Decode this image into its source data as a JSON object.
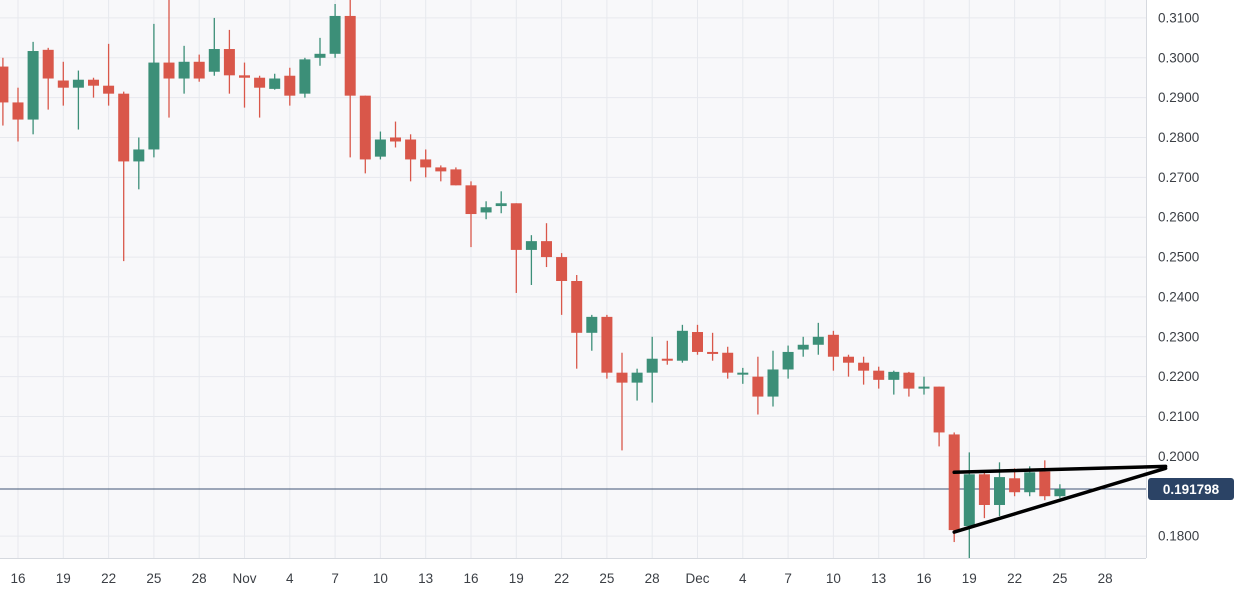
{
  "chart_data": {
    "type": "candlestick",
    "x_tick_labels": [
      "16",
      "19",
      "22",
      "25",
      "28",
      "Nov",
      "4",
      "7",
      "10",
      "13",
      "16",
      "19",
      "22",
      "25",
      "28",
      "Dec",
      "4",
      "7",
      "10",
      "13",
      "16",
      "19",
      "22",
      "25",
      "28"
    ],
    "y_tick_labels": [
      "0.3100",
      "0.3000",
      "0.2900",
      "0.2800",
      "0.2700",
      "0.2600",
      "0.2500",
      "0.2400",
      "0.2300",
      "0.2200",
      "0.2100",
      "0.2000",
      "0.1800"
    ],
    "ylim": [
      0.1745,
      0.3145
    ],
    "grid": true,
    "current_price": {
      "value": 0.191798,
      "label": "0.191798"
    },
    "colors": {
      "up": "#3c8f78",
      "down": "#d9574a",
      "price_line": "#3f5575",
      "price_tag": "#2b4365",
      "grid": "#e7e9ee",
      "trendline": "#000000",
      "background": "#f8f8fa",
      "axis_text": "#3b3f45"
    },
    "candles": [
      {
        "date": "Oct 15",
        "open": 0.2978,
        "high": 0.3,
        "low": 0.283,
        "close": 0.2888
      },
      {
        "date": "Oct 16",
        "open": 0.2888,
        "high": 0.2925,
        "low": 0.279,
        "close": 0.2845
      },
      {
        "date": "Oct 17",
        "open": 0.2845,
        "high": 0.304,
        "low": 0.2808,
        "close": 0.3017
      },
      {
        "date": "Oct 18",
        "open": 0.302,
        "high": 0.3025,
        "low": 0.287,
        "close": 0.2948
      },
      {
        "date": "Oct 19",
        "open": 0.2943,
        "high": 0.299,
        "low": 0.288,
        "close": 0.2925
      },
      {
        "date": "Oct 20",
        "open": 0.2925,
        "high": 0.2968,
        "low": 0.282,
        "close": 0.2945
      },
      {
        "date": "Oct 21",
        "open": 0.2945,
        "high": 0.295,
        "low": 0.29,
        "close": 0.293
      },
      {
        "date": "Oct 22",
        "open": 0.293,
        "high": 0.3035,
        "low": 0.288,
        "close": 0.291
      },
      {
        "date": "Oct 23",
        "open": 0.291,
        "high": 0.2915,
        "low": 0.249,
        "close": 0.274
      },
      {
        "date": "Oct 24",
        "open": 0.274,
        "high": 0.28,
        "low": 0.267,
        "close": 0.277
      },
      {
        "date": "Oct 25",
        "open": 0.277,
        "high": 0.3085,
        "low": 0.275,
        "close": 0.2988
      },
      {
        "date": "Oct 26",
        "open": 0.2988,
        "high": 0.3145,
        "low": 0.285,
        "close": 0.2948
      },
      {
        "date": "Oct 27",
        "open": 0.2948,
        "high": 0.303,
        "low": 0.291,
        "close": 0.299
      },
      {
        "date": "Oct 28",
        "open": 0.299,
        "high": 0.3008,
        "low": 0.294,
        "close": 0.2948
      },
      {
        "date": "Oct 29",
        "open": 0.2965,
        "high": 0.31,
        "low": 0.2955,
        "close": 0.3022
      },
      {
        "date": "Oct 30",
        "open": 0.3022,
        "high": 0.307,
        "low": 0.291,
        "close": 0.2956
      },
      {
        "date": "Oct 31",
        "open": 0.2956,
        "high": 0.2988,
        "low": 0.2875,
        "close": 0.295
      },
      {
        "date": "Nov 1",
        "open": 0.295,
        "high": 0.2955,
        "low": 0.285,
        "close": 0.2925
      },
      {
        "date": "Nov 2",
        "open": 0.2922,
        "high": 0.296,
        "low": 0.292,
        "close": 0.2948
      },
      {
        "date": "Nov 3",
        "open": 0.2955,
        "high": 0.2975,
        "low": 0.288,
        "close": 0.2905
      },
      {
        "date": "Nov 4",
        "open": 0.291,
        "high": 0.3,
        "low": 0.29,
        "close": 0.2996
      },
      {
        "date": "Nov 5",
        "open": 0.3,
        "high": 0.305,
        "low": 0.298,
        "close": 0.301
      },
      {
        "date": "Nov 6",
        "open": 0.301,
        "high": 0.3135,
        "low": 0.3,
        "close": 0.3105
      },
      {
        "date": "Nov 7",
        "open": 0.3105,
        "high": 0.3145,
        "low": 0.275,
        "close": 0.2905
      },
      {
        "date": "Nov 8",
        "open": 0.2905,
        "high": 0.2905,
        "low": 0.271,
        "close": 0.2745
      },
      {
        "date": "Nov 9",
        "open": 0.2752,
        "high": 0.2815,
        "low": 0.2745,
        "close": 0.2795
      },
      {
        "date": "Nov 10",
        "open": 0.28,
        "high": 0.284,
        "low": 0.2775,
        "close": 0.279
      },
      {
        "date": "Nov 11",
        "open": 0.2795,
        "high": 0.2808,
        "low": 0.269,
        "close": 0.2745
      },
      {
        "date": "Nov 12",
        "open": 0.2745,
        "high": 0.277,
        "low": 0.27,
        "close": 0.2725
      },
      {
        "date": "Nov 13",
        "open": 0.2725,
        "high": 0.273,
        "low": 0.269,
        "close": 0.2715
      },
      {
        "date": "Nov 14",
        "open": 0.272,
        "high": 0.2725,
        "low": 0.268,
        "close": 0.268
      },
      {
        "date": "Nov 15",
        "open": 0.268,
        "high": 0.269,
        "low": 0.2525,
        "close": 0.2608
      },
      {
        "date": "Nov 16",
        "open": 0.2612,
        "high": 0.264,
        "low": 0.2595,
        "close": 0.2625
      },
      {
        "date": "Nov 17",
        "open": 0.2628,
        "high": 0.2665,
        "low": 0.261,
        "close": 0.2635
      },
      {
        "date": "Nov 18",
        "open": 0.2635,
        "high": 0.2635,
        "low": 0.241,
        "close": 0.2518
      },
      {
        "date": "Nov 19",
        "open": 0.2518,
        "high": 0.2555,
        "low": 0.243,
        "close": 0.254
      },
      {
        "date": "Nov 20",
        "open": 0.254,
        "high": 0.2585,
        "low": 0.2475,
        "close": 0.25
      },
      {
        "date": "Nov 21",
        "open": 0.25,
        "high": 0.251,
        "low": 0.2355,
        "close": 0.244
      },
      {
        "date": "Nov 22",
        "open": 0.244,
        "high": 0.2455,
        "low": 0.222,
        "close": 0.231
      },
      {
        "date": "Nov 23",
        "open": 0.231,
        "high": 0.2355,
        "low": 0.2265,
        "close": 0.235
      },
      {
        "date": "Nov 24",
        "open": 0.235,
        "high": 0.2355,
        "low": 0.2195,
        "close": 0.221
      },
      {
        "date": "Nov 25",
        "open": 0.221,
        "high": 0.226,
        "low": 0.2015,
        "close": 0.2185
      },
      {
        "date": "Nov 26",
        "open": 0.2185,
        "high": 0.222,
        "low": 0.214,
        "close": 0.221
      },
      {
        "date": "Nov 27",
        "open": 0.221,
        "high": 0.23,
        "low": 0.2135,
        "close": 0.2245
      },
      {
        "date": "Nov 28",
        "open": 0.2245,
        "high": 0.229,
        "low": 0.223,
        "close": 0.224
      },
      {
        "date": "Nov 29",
        "open": 0.224,
        "high": 0.233,
        "low": 0.2235,
        "close": 0.2315
      },
      {
        "date": "Nov 30",
        "open": 0.2312,
        "high": 0.233,
        "low": 0.2255,
        "close": 0.2262
      },
      {
        "date": "Dec 1",
        "open": 0.2262,
        "high": 0.231,
        "low": 0.224,
        "close": 0.226
      },
      {
        "date": "Dec 2",
        "open": 0.226,
        "high": 0.2275,
        "low": 0.2195,
        "close": 0.221
      },
      {
        "date": "Dec 3",
        "open": 0.2205,
        "high": 0.2222,
        "low": 0.2182,
        "close": 0.221
      },
      {
        "date": "Dec 4",
        "open": 0.22,
        "high": 0.225,
        "low": 0.2105,
        "close": 0.215
      },
      {
        "date": "Dec 5",
        "open": 0.215,
        "high": 0.2265,
        "low": 0.2125,
        "close": 0.2218
      },
      {
        "date": "Dec 6",
        "open": 0.2218,
        "high": 0.2278,
        "low": 0.2195,
        "close": 0.2262
      },
      {
        "date": "Dec 7",
        "open": 0.2268,
        "high": 0.23,
        "low": 0.225,
        "close": 0.228
      },
      {
        "date": "Dec 8",
        "open": 0.228,
        "high": 0.2335,
        "low": 0.2255,
        "close": 0.23
      },
      {
        "date": "Dec 9",
        "open": 0.2305,
        "high": 0.2315,
        "low": 0.2215,
        "close": 0.225
      },
      {
        "date": "Dec 10",
        "open": 0.225,
        "high": 0.2255,
        "low": 0.22,
        "close": 0.2235
      },
      {
        "date": "Dec 11",
        "open": 0.2235,
        "high": 0.225,
        "low": 0.218,
        "close": 0.2215
      },
      {
        "date": "Dec 12",
        "open": 0.2215,
        "high": 0.2225,
        "low": 0.217,
        "close": 0.2192
      },
      {
        "date": "Dec 13",
        "open": 0.2192,
        "high": 0.2215,
        "low": 0.2155,
        "close": 0.2212
      },
      {
        "date": "Dec 14",
        "open": 0.221,
        "high": 0.2212,
        "low": 0.215,
        "close": 0.217
      },
      {
        "date": "Dec 15",
        "open": 0.217,
        "high": 0.22,
        "low": 0.2155,
        "close": 0.2175
      },
      {
        "date": "Dec 16",
        "open": 0.2175,
        "high": 0.2175,
        "low": 0.2025,
        "close": 0.206
      },
      {
        "date": "Dec 17",
        "open": 0.2055,
        "high": 0.206,
        "low": 0.1785,
        "close": 0.1815
      },
      {
        "date": "Dec 18",
        "open": 0.1825,
        "high": 0.201,
        "low": 0.1745,
        "close": 0.1955
      },
      {
        "date": "Dec 19",
        "open": 0.1955,
        "high": 0.1965,
        "low": 0.1845,
        "close": 0.1878
      },
      {
        "date": "Dec 20",
        "open": 0.1878,
        "high": 0.1985,
        "low": 0.185,
        "close": 0.1948
      },
      {
        "date": "Dec 21",
        "open": 0.1945,
        "high": 0.197,
        "low": 0.19,
        "close": 0.191
      },
      {
        "date": "Dec 22",
        "open": 0.191,
        "high": 0.1975,
        "low": 0.19,
        "close": 0.196
      },
      {
        "date": "Dec 23",
        "open": 0.1962,
        "high": 0.199,
        "low": 0.189,
        "close": 0.19
      },
      {
        "date": "Dec 24",
        "open": 0.19,
        "high": 0.193,
        "low": 0.1895,
        "close": 0.1918
      }
    ],
    "trendlines": [
      {
        "name": "upper",
        "start": {
          "date": "Dec 17",
          "price": 0.196
        },
        "end": {
          "date": "Dec 31",
          "price": 0.1975
        }
      },
      {
        "name": "lower",
        "start": {
          "date": "Dec 17",
          "price": 0.181
        },
        "end": {
          "date": "Dec 31",
          "price": 0.197
        }
      }
    ]
  }
}
